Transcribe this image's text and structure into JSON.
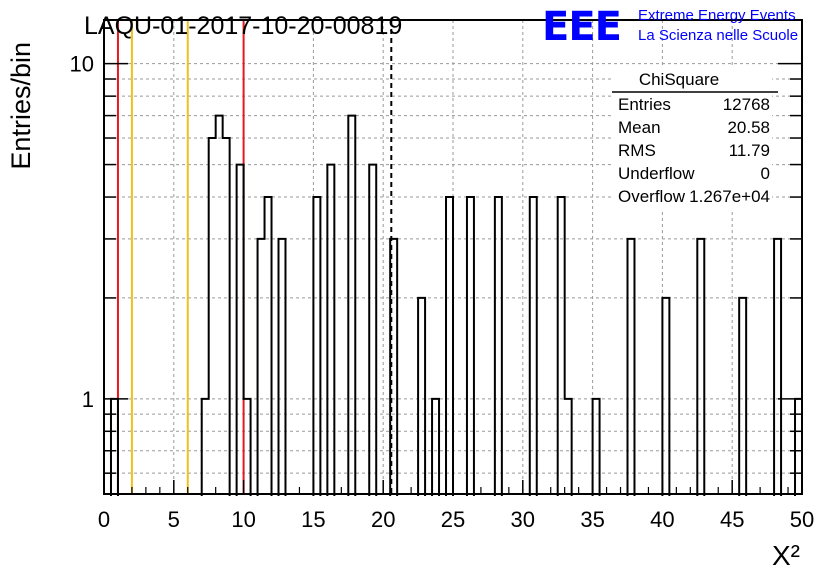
{
  "header": {
    "run_title": "LAQU-01-2017-10-20-00819",
    "logo_text": "EEE",
    "logo_line1": "Extreme Energy Events",
    "logo_line2": "La Scienza nelle Scuole"
  },
  "stats_box": {
    "title": "ChiSquare",
    "rows": [
      {
        "label": "Entries",
        "value": "12768"
      },
      {
        "label": "Mean",
        "value": "20.58"
      },
      {
        "label": "RMS",
        "value": "11.79"
      },
      {
        "label": "Underflow",
        "value": "0"
      },
      {
        "label": "Overflow",
        "value": "1.267e+04"
      }
    ]
  },
  "chart_data": {
    "type": "histogram",
    "ylabel": "Entries/bin",
    "xlabel": "X²",
    "x_scale": "linear",
    "y_scale": "log",
    "xlim": [
      0,
      50
    ],
    "ylim": [
      0.52,
      13.5
    ],
    "bin_width": 0.5,
    "grid": true,
    "x_ticks": [
      0,
      5,
      10,
      15,
      20,
      25,
      30,
      35,
      40,
      45,
      50
    ],
    "x_tick_labels": [
      "0",
      "5",
      "10",
      "15",
      "20",
      "25",
      "30",
      "35",
      "40",
      "45",
      "50"
    ],
    "y_ticks": [
      1,
      10
    ],
    "y_tick_labels": [
      "1",
      "10"
    ],
    "bins": [
      {
        "x": 0.5,
        "count": 1
      },
      {
        "x": 7.0,
        "count": 1
      },
      {
        "x": 7.5,
        "count": 6
      },
      {
        "x": 8.0,
        "count": 7
      },
      {
        "x": 8.5,
        "count": 6
      },
      {
        "x": 9.5,
        "count": 5
      },
      {
        "x": 10.0,
        "count": 1
      },
      {
        "x": 11.0,
        "count": 3
      },
      {
        "x": 11.5,
        "count": 4
      },
      {
        "x": 12.5,
        "count": 3
      },
      {
        "x": 15.0,
        "count": 4
      },
      {
        "x": 16.0,
        "count": 5
      },
      {
        "x": 17.5,
        "count": 7
      },
      {
        "x": 19.0,
        "count": 5
      },
      {
        "x": 20.5,
        "count": 3
      },
      {
        "x": 22.5,
        "count": 2
      },
      {
        "x": 23.5,
        "count": 1
      },
      {
        "x": 24.5,
        "count": 4
      },
      {
        "x": 26.0,
        "count": 4
      },
      {
        "x": 28.0,
        "count": 4
      },
      {
        "x": 30.5,
        "count": 4
      },
      {
        "x": 32.5,
        "count": 4
      },
      {
        "x": 33.0,
        "count": 1
      },
      {
        "x": 35.0,
        "count": 1
      },
      {
        "x": 37.5,
        "count": 3
      },
      {
        "x": 40.0,
        "count": 2
      },
      {
        "x": 42.5,
        "count": 3
      },
      {
        "x": 45.5,
        "count": 2
      },
      {
        "x": 48.0,
        "count": 3
      }
    ],
    "last_bin_from_frame_edge": {
      "x": 49.5,
      "count": 1
    },
    "reference_lines": [
      {
        "x": 1,
        "color": "#e8191e",
        "style": "solid"
      },
      {
        "x": 10,
        "color": "#e8191e",
        "style": "solid"
      },
      {
        "x": 2,
        "color": "#f0c020",
        "style": "solid"
      },
      {
        "x": 6,
        "color": "#f0c020",
        "style": "solid"
      },
      {
        "x": 20.58,
        "color": "#000000",
        "style": "dashed"
      }
    ]
  }
}
